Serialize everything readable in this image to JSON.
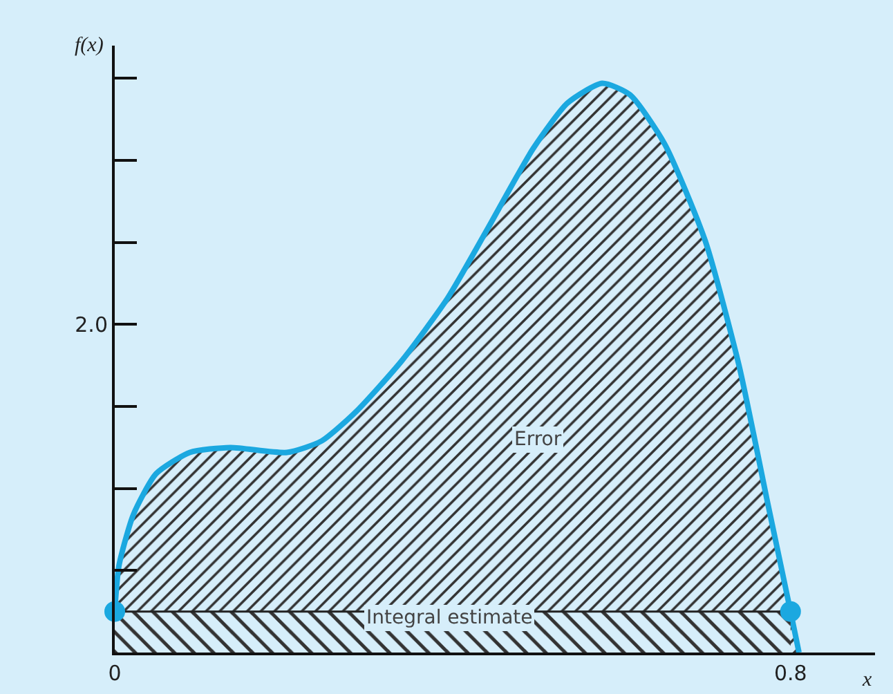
{
  "chart_data": {
    "type": "area",
    "xlabel": "x",
    "ylabel": "f(x)",
    "annotations": [
      {
        "text": "Error",
        "x": 0.5,
        "y": 1.3
      },
      "Integral estimate"
    ],
    "series": [
      {
        "color": "#1ba8e0",
        "x": [
          0,
          0.005,
          0.022,
          0.049,
          0.089,
          0.137,
          0.204,
          0.245,
          0.286,
          0.34,
          0.394,
          0.441,
          0.495,
          0.536,
          0.577,
          0.61,
          0.651,
          0.699,
          0.739,
          0.773,
          0.8,
          0.81
        ],
        "values": [
          0.25,
          0.53,
          0.84,
          1.09,
          1.22,
          1.25,
          1.22,
          1.29,
          1.47,
          1.78,
          2.16,
          2.58,
          3.07,
          3.35,
          3.47,
          3.4,
          3.1,
          2.51,
          1.75,
          0.91,
          0.25,
          0
        ],
        "marker": "none"
      },
      {
        "color": "#222222",
        "x": [
          0,
          0.8
        ],
        "values": [
          0.25,
          0.25
        ],
        "marker": "none"
      },
      {
        "type": "scatter",
        "color": "#1ba8e0",
        "x": [
          0,
          0.8
        ],
        "values": [
          0.25,
          0.25
        ],
        "marker": "circle"
      }
    ],
    "xlim": [
      0,
      0.9
    ],
    "xticks": [
      0,
      0.8
    ],
    "ylim": [
      0,
      3.7
    ],
    "yticks": [
      {
        "value": 0.5,
        "label": null
      },
      {
        "value": 1.0,
        "label": null
      },
      {
        "value": 1.5,
        "label": null
      },
      2.0,
      {
        "value": 2.5,
        "label": null
      },
      {
        "value": 3.0,
        "label": null
      },
      {
        "value": 3.5,
        "label": null
      }
    ],
    "tick_labels": true
  }
}
